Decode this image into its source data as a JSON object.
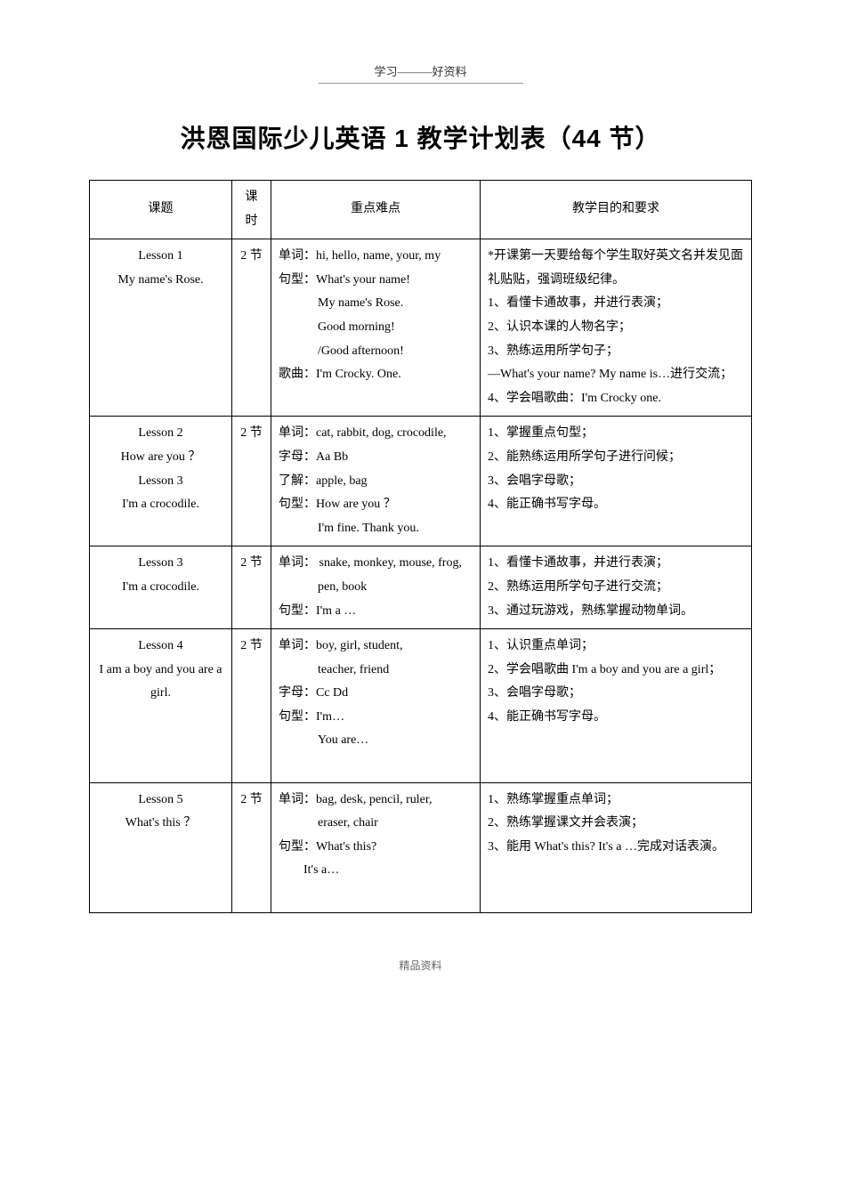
{
  "header_text": "学习———好资料",
  "title": "洪恩国际少儿英语 1 教学计划表（44 节）",
  "footer": "精品资料",
  "columns": {
    "lesson": "课题",
    "hours": "课时",
    "points": "重点难点",
    "objectives": "教学目的和要求"
  },
  "rows": [
    {
      "lesson_line1": "Lesson 1",
      "lesson_line2": "My name's Rose.",
      "hours": "2 节",
      "points_line1": "单词：hi, hello, name, your, my",
      "points_line2": "句型：What's your name!",
      "points_line3": "My name's Rose.",
      "points_line4": "Good morning!",
      "points_line5": "/Good afternoon!",
      "points_line6": "歌曲：I'm Crocky. One.",
      "obj_line1": "*开课第一天要给每个学生取好英文名并发见面礼贴贴，强调班级纪律。",
      "obj_line2": "1、看懂卡通故事，并进行表演；",
      "obj_line3": "2、认识本课的人物名字；",
      "obj_line4": "3、熟练运用所学句子；",
      "obj_line5": "—What's your name? My name is…进行交流；",
      "obj_line6": "4、学会唱歌曲：I'm Crocky one."
    },
    {
      "lesson_line1": "Lesson 2",
      "lesson_line2": "How are you ？",
      "lesson_line3": "Lesson 3",
      "lesson_line4": "I'm a crocodile.",
      "hours": "2 节",
      "points_line1": "单词：cat, rabbit, dog, crocodile,",
      "points_line2": "字母：Aa   Bb",
      "points_line3": "了解：apple, bag",
      "points_line4": "句型：How are you ？",
      "points_line5": "I'm fine. Thank you.",
      "obj_line1": "1、掌握重点句型；",
      "obj_line2": "2、能熟练运用所学句子进行问候；",
      "obj_line3": "3、会唱字母歌；",
      "obj_line4": "4、能正确书写字母。"
    },
    {
      "lesson_line1": "Lesson 3",
      "lesson_line2": "I'm a crocodile.",
      "hours": "2 节",
      "points_line1": "单词：  snake, monkey, mouse, frog,",
      "points_line2": "pen, book",
      "points_line3": "句型：I'm a …",
      "obj_line1": "1、看懂卡通故事，并进行表演；",
      "obj_line2": "2、熟练运用所学句子进行交流；",
      "obj_line3": "3、通过玩游戏，熟练掌握动物单词。"
    },
    {
      "lesson_line1": "Lesson 4",
      "lesson_line2": "I am a boy and you are a girl.",
      "hours": "2 节",
      "points_line1": "单词：boy, girl, student,",
      "points_line2": "teacher, friend",
      "points_line3": "字母：Cc   Dd",
      "points_line4": "句型：I'm…",
      "points_line5": "You are…",
      "obj_line1": "1、认识重点单词；",
      "obj_line2": "2、学会唱歌曲 I'm a boy and you are a girl；",
      "obj_line3": "3、会唱字母歌；",
      "obj_line4": "4、能正确书写字母。"
    },
    {
      "lesson_line1": "Lesson 5",
      "lesson_line2": "What's this ？",
      "hours": "2 节",
      "points_line1": "单词：bag, desk, pencil, ruler,",
      "points_line2": "eraser, chair",
      "points_line3": "句型：What's this?",
      "points_line4": "It's a…",
      "obj_line1": "1、熟练掌握重点单词；",
      "obj_line2": "2、熟练掌握课文并会表演；",
      "obj_line3": "3、能用 What's this? It's a …完成对话表演。"
    }
  ]
}
